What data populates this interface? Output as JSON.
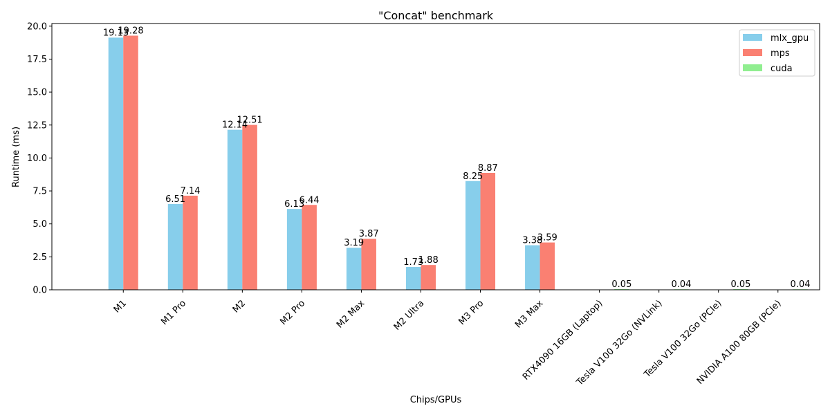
{
  "chart_data": {
    "type": "bar",
    "title": "\"Concat\" benchmark",
    "xlabel": "Chips/GPUs",
    "ylabel": "Runtime (ms)",
    "categories": [
      "M1",
      "M1 Pro",
      "M2",
      "M2 Pro",
      "M2 Max",
      "M2 Ultra",
      "M3 Pro",
      "M3 Max",
      "RTX4090 16GB (Laptop)",
      "Tesla V100 32Go (NVLink)",
      "Tesla V100 32Go (PCIe)",
      "NVIDIA A100 80GB (PCIe)"
    ],
    "series": [
      {
        "name": "mlx_gpu",
        "color": "#87CEEB",
        "values": [
          19.13,
          6.51,
          12.14,
          6.13,
          3.19,
          1.73,
          8.25,
          3.38,
          null,
          null,
          null,
          null
        ],
        "labels": [
          "19.13",
          "6.51",
          "12.14",
          "6.13",
          "3.19",
          "1.73",
          "8.25",
          "3.38",
          null,
          null,
          null,
          null
        ]
      },
      {
        "name": "mps",
        "color": "#FA8072",
        "values": [
          19.28,
          7.14,
          12.51,
          6.44,
          3.87,
          1.88,
          8.87,
          3.59,
          null,
          null,
          null,
          null
        ],
        "labels": [
          "19.28",
          "7.14",
          "12.51",
          "6.44",
          "3.87",
          "1.88",
          "8.87",
          "3.59",
          null,
          null,
          null,
          null
        ]
      },
      {
        "name": "cuda",
        "color": "#90EE90",
        "values": [
          null,
          null,
          null,
          null,
          null,
          null,
          null,
          null,
          0.05,
          0.04,
          0.05,
          0.04
        ],
        "labels": [
          null,
          null,
          null,
          null,
          null,
          null,
          null,
          null,
          "0.05",
          "0.04",
          "0.05",
          "0.04"
        ]
      }
    ],
    "ylim": [
      0,
      20.2
    ],
    "yticks": [
      "0.0",
      "2.5",
      "5.0",
      "7.5",
      "10.0",
      "12.5",
      "15.0",
      "17.5",
      "20.0"
    ],
    "xtick_rotation": 45,
    "grid": false,
    "legend": "top-right"
  }
}
